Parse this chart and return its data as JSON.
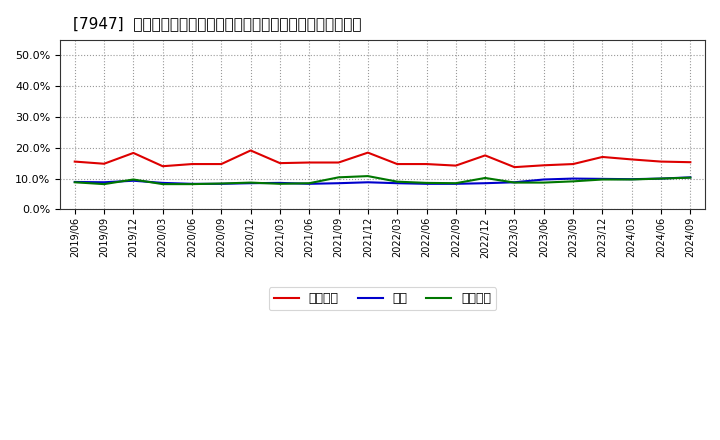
{
  "title": "[7947]  売上債権、在庫、買入債務の総資産に対する比率の推移",
  "title_fontsize": 11,
  "background_color": "#ffffff",
  "plot_bg_color": "#ffffff",
  "grid_color": "#999999",
  "dates": [
    "2019/06",
    "2019/09",
    "2019/12",
    "2020/03",
    "2020/06",
    "2020/09",
    "2020/12",
    "2021/03",
    "2021/06",
    "2021/09",
    "2021/12",
    "2022/03",
    "2022/06",
    "2022/09",
    "2022/12",
    "2023/03",
    "2023/06",
    "2023/09",
    "2023/12",
    "2024/03",
    "2024/06",
    "2024/09"
  ],
  "receivables": [
    0.155,
    0.148,
    0.183,
    0.14,
    0.147,
    0.147,
    0.191,
    0.15,
    0.152,
    0.152,
    0.184,
    0.147,
    0.147,
    0.142,
    0.175,
    0.137,
    0.143,
    0.147,
    0.17,
    0.162,
    0.155,
    0.153
  ],
  "inventory": [
    0.089,
    0.088,
    0.093,
    0.086,
    0.083,
    0.083,
    0.085,
    0.086,
    0.083,
    0.085,
    0.088,
    0.085,
    0.083,
    0.083,
    0.085,
    0.088,
    0.097,
    0.1,
    0.099,
    0.098,
    0.1,
    0.104
  ],
  "payables": [
    0.088,
    0.082,
    0.097,
    0.082,
    0.082,
    0.084,
    0.087,
    0.083,
    0.085,
    0.104,
    0.108,
    0.09,
    0.086,
    0.085,
    0.102,
    0.087,
    0.087,
    0.091,
    0.097,
    0.097,
    0.1,
    0.103
  ],
  "receivables_color": "#dd0000",
  "inventory_color": "#0000cc",
  "payables_color": "#007700",
  "legend_labels": [
    "売上債権",
    "在庫",
    "買入債務"
  ],
  "ylim": [
    0.0,
    0.55
  ],
  "yticks": [
    0.0,
    0.1,
    0.2,
    0.3,
    0.4,
    0.5
  ],
  "line_width": 1.5
}
